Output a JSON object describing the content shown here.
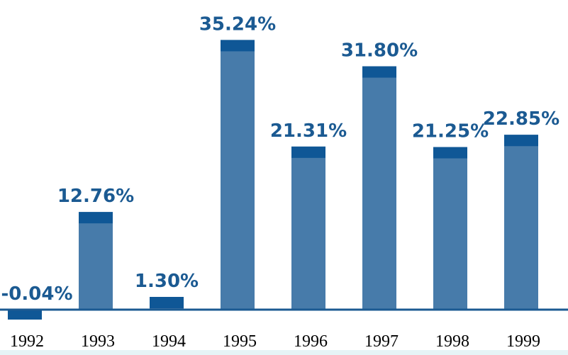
{
  "chart_data": {
    "type": "bar",
    "title": "",
    "xlabel": "",
    "ylabel": "",
    "categories": [
      "1992",
      "1993",
      "1994",
      "1995",
      "1996",
      "1997",
      "1998",
      "1999"
    ],
    "values": [
      -0.04,
      12.76,
      1.3,
      35.24,
      21.31,
      31.8,
      21.25,
      22.85
    ],
    "data_labels": [
      "-0.04%",
      "12.76%",
      "1.30%",
      "35.24%",
      "21.31%",
      "31.80%",
      "21.25%",
      "22.85%"
    ],
    "ylim": [
      -0.5,
      38
    ],
    "grid": false,
    "legend": "none",
    "colors": {
      "bar": "#477baa",
      "bar_cap": "#0f5796",
      "label": "#1b5a92",
      "axis": "#1b5a92",
      "bottom_strip": "#e6f4f6"
    }
  }
}
